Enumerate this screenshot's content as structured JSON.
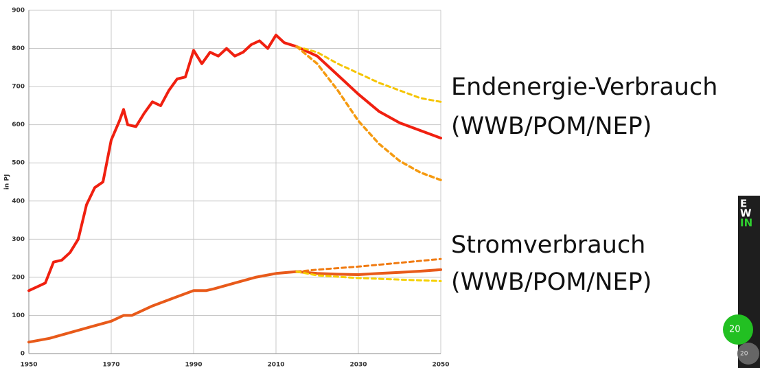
{
  "chart_data": {
    "type": "line",
    "ylabel": "in PJ",
    "xlim": [
      1950,
      2050
    ],
    "xticks": [
      1950,
      1970,
      1990,
      2010,
      2030,
      2050
    ],
    "ylim": [
      0,
      900
    ],
    "yticks": [
      0,
      100,
      200,
      300,
      400,
      500,
      600,
      700,
      800,
      900
    ],
    "grid": true,
    "series": [
      {
        "color": "#f02010",
        "dash": false,
        "width": 4,
        "x": [
          1950,
          1952,
          1954,
          1956,
          1958,
          1960,
          1962,
          1964,
          1966,
          1968,
          1970,
          1972,
          1973,
          1974,
          1976,
          1978,
          1980,
          1982,
          1984,
          1986,
          1988,
          1990,
          1992,
          1994,
          1996,
          1998,
          2000,
          2002,
          2004,
          2006,
          2008,
          2010,
          2012,
          2015,
          2020,
          2025,
          2030,
          2035,
          2040,
          2045,
          2050
        ],
        "values": [
          165,
          175,
          185,
          240,
          245,
          265,
          300,
          390,
          435,
          450,
          560,
          610,
          640,
          600,
          595,
          630,
          660,
          650,
          690,
          720,
          725,
          795,
          760,
          790,
          780,
          800,
          780,
          790,
          810,
          820,
          800,
          835,
          815,
          805,
          780,
          730,
          680,
          635,
          605,
          585,
          565
        ]
      },
      {
        "color": "#f5c400",
        "dash": true,
        "width": 3,
        "x": [
          2015,
          2020,
          2025,
          2030,
          2035,
          2040,
          2045,
          2050
        ],
        "values": [
          805,
          790,
          760,
          735,
          710,
          690,
          670,
          660
        ]
      },
      {
        "color": "#f59a10",
        "dash": true,
        "width": 3.5,
        "x": [
          2015,
          2020,
          2025,
          2030,
          2035,
          2040,
          2045,
          2050
        ],
        "values": [
          805,
          760,
          690,
          610,
          550,
          505,
          475,
          455
        ]
      },
      {
        "color": "#e85a1a",
        "dash": false,
        "width": 4,
        "x": [
          1950,
          1955,
          1960,
          1965,
          1970,
          1973,
          1975,
          1980,
          1985,
          1990,
          1993,
          1995,
          2000,
          2005,
          2010,
          2015,
          2020,
          2025,
          2030,
          2035,
          2040,
          2045,
          2050
        ],
        "values": [
          30,
          40,
          55,
          70,
          85,
          100,
          100,
          125,
          145,
          165,
          165,
          170,
          185,
          200,
          210,
          215,
          210,
          208,
          207,
          210,
          213,
          216,
          220
        ]
      },
      {
        "color": "#f07a10",
        "dash": true,
        "width": 3,
        "x": [
          2015,
          2020,
          2030,
          2040,
          2050
        ],
        "values": [
          215,
          220,
          228,
          238,
          248
        ]
      },
      {
        "color": "#f5d000",
        "dash": true,
        "width": 3,
        "x": [
          2015,
          2020,
          2030,
          2040,
          2050
        ],
        "values": [
          215,
          205,
          198,
          194,
          190
        ]
      }
    ],
    "annotations": [
      "Endenergie-Verbrauch",
      "(WWB/POM/NEP)",
      "Stromverbrauch",
      "(WWB/POM/NEP)"
    ]
  },
  "thumbnail": {
    "lines": [
      "E",
      "W",
      "IN"
    ],
    "badges": [
      "20",
      "20"
    ]
  }
}
